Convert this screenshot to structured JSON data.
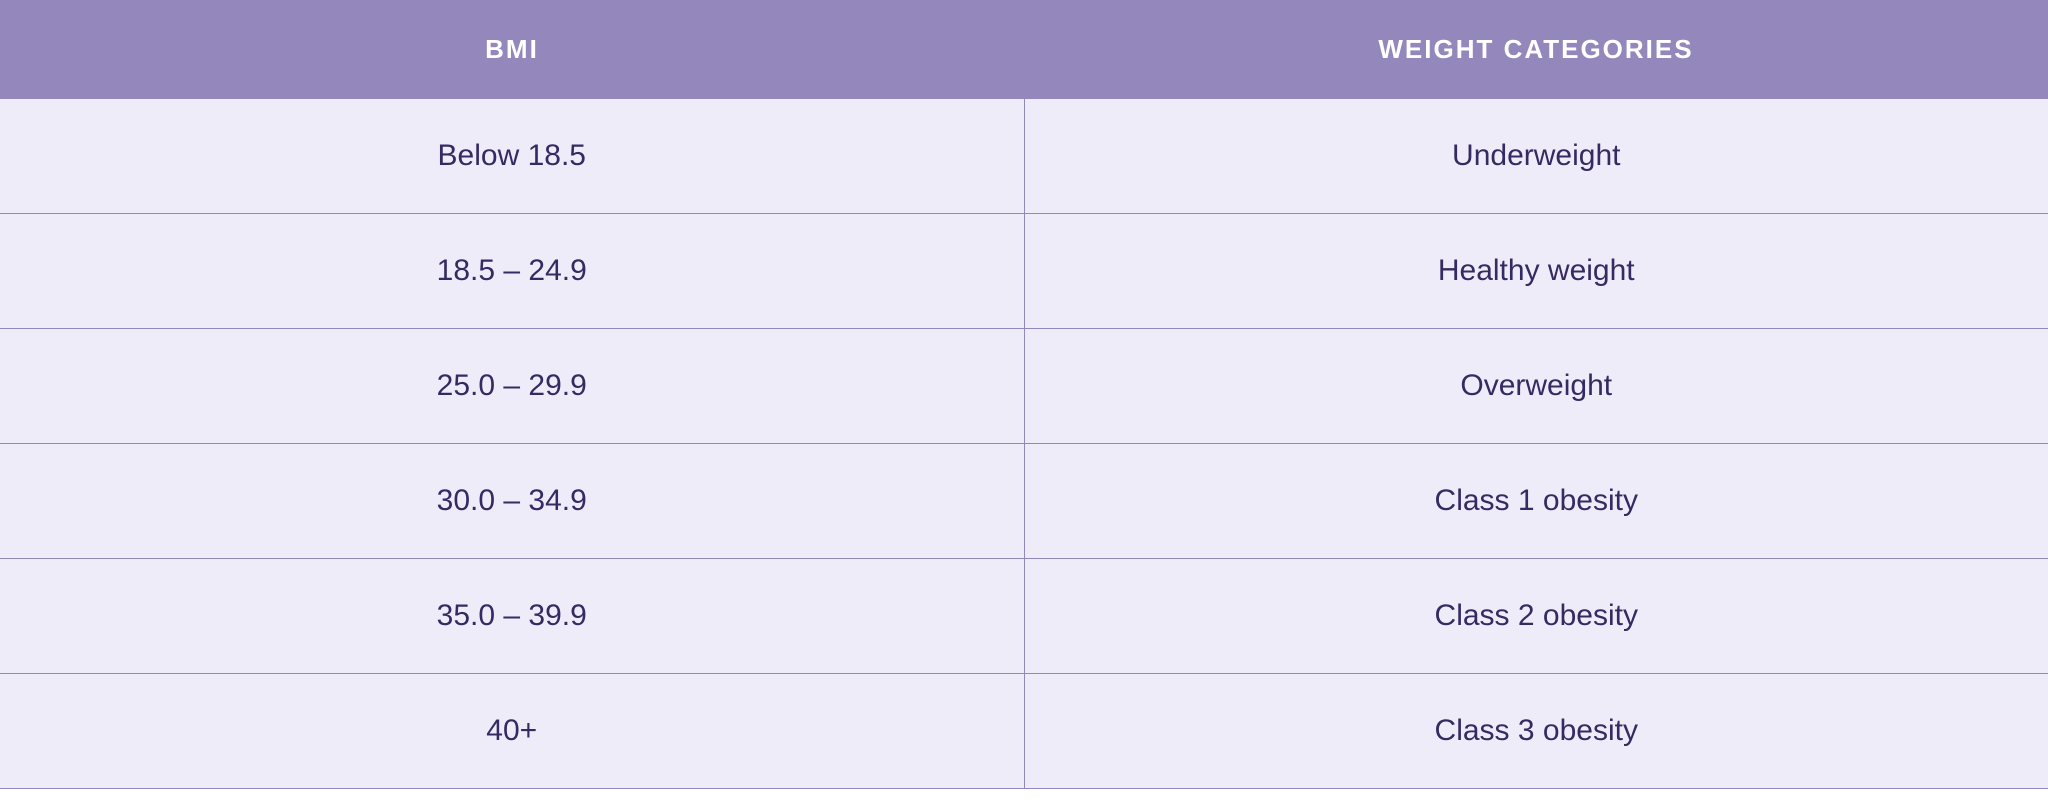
{
  "table": {
    "type": "table",
    "columns": [
      {
        "label": "BMI"
      },
      {
        "label": "WEIGHT CATEGORIES"
      }
    ],
    "rows": [
      {
        "bmi": "Below 18.5",
        "category": "Underweight"
      },
      {
        "bmi": "18.5 – 24.9",
        "category": "Healthy weight"
      },
      {
        "bmi": "25.0 – 29.9",
        "category": "Overweight"
      },
      {
        "bmi": "30.0 – 34.9",
        "category": "Class 1 obesity"
      },
      {
        "bmi": "35.0 – 39.9",
        "category": "Class 2 obesity"
      },
      {
        "bmi": "40+",
        "category": "Class 3 obesity"
      }
    ],
    "styling": {
      "header_background": "#9487bb",
      "header_text_color": "#ffffff",
      "header_font_size": 26,
      "header_font_weight": 700,
      "header_letter_spacing": 2,
      "row_background": "#efecf9",
      "row_text_color": "#362a63",
      "row_font_size": 30,
      "border_color": "#9487bb",
      "cell_padding_vertical": 40,
      "header_padding_vertical": 34
    }
  }
}
